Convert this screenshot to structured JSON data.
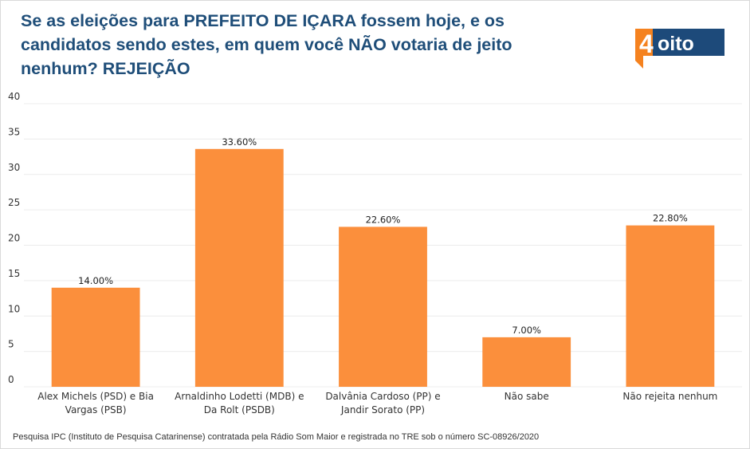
{
  "title": "Se as eleições para PREFEITO DE IÇARA fossem hoje, e os candidatos sendo estes, em quem você NÃO votaria de jeito nenhum? REJEIÇÃO",
  "logo": {
    "digit": "4",
    "text": "oito"
  },
  "colors": {
    "bar": "#fb8f3c",
    "title": "#1f4e79",
    "logo_blue": "#1d4a7a",
    "logo_orange": "#f5821f",
    "grid": "#ececec"
  },
  "source": "Pesquisa IPC (Instituto de Pesquisa Catarinense) contratada pela Rádio Som Maior e registrada no TRE sob o número SC-08926/2020",
  "chart_data": {
    "type": "bar",
    "title": "Se as eleições para PREFEITO DE IÇARA fossem hoje, e os candidatos sendo estes, em quem você NÃO votaria de jeito nenhum? REJEIÇÃO",
    "xlabel": "",
    "ylabel": "",
    "ylim": [
      0,
      40
    ],
    "yticks": [
      0,
      5,
      10,
      15,
      20,
      25,
      30,
      35,
      40
    ],
    "grid": true,
    "legend": "none",
    "categories": [
      [
        "Alex Michels (PSD) e Bia",
        "Vargas (PSB)"
      ],
      [
        "Arnaldinho Lodetti (MDB) e",
        "Da Rolt (PSDB)"
      ],
      [
        "Dalvânia Cardoso (PP) e",
        "Jandir Sorato (PP)"
      ],
      [
        "Não sabe"
      ],
      [
        "Não rejeita nenhum"
      ]
    ],
    "values": [
      14.0,
      33.6,
      22.6,
      7.0,
      22.8
    ],
    "data_labels": [
      "14.00%",
      "33.60%",
      "22.60%",
      "7.00%",
      "22.80%"
    ]
  }
}
